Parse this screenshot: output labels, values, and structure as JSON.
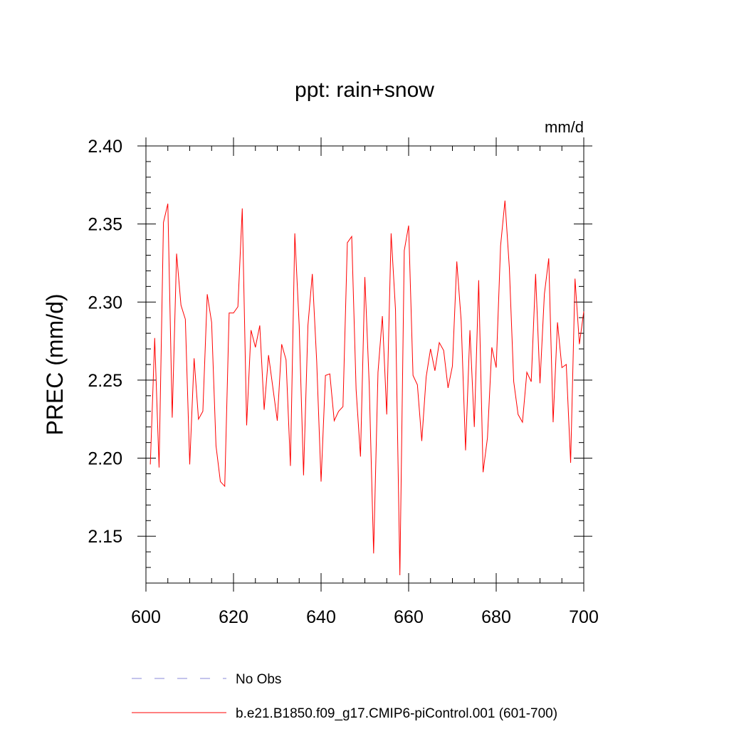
{
  "chart_data": {
    "type": "line",
    "title": "ppt: rain+snow",
    "units": "mm/d",
    "ylabel": "PREC  (mm/d)",
    "xlabel": "",
    "xlim": [
      600,
      700
    ],
    "ylim": [
      2.12,
      2.4
    ],
    "x_major_ticks": [
      600,
      620,
      640,
      660,
      680,
      700
    ],
    "x_minor_step": 5,
    "y_major_ticks": [
      2.15,
      2.2,
      2.25,
      2.3,
      2.35,
      2.4
    ],
    "y_tick_labels": [
      "2.15",
      "2.20",
      "2.25",
      "2.30",
      "2.35",
      "2.40"
    ],
    "y_minor_step": 0.01,
    "grid": false,
    "legend_position": "bottom",
    "series": [
      {
        "name": "No Obs",
        "color": "#8a8ad8",
        "style": "dashed",
        "x": [],
        "values": []
      },
      {
        "name": "b.e21.B1850.f09_g17.CMIP6-piControl.001 (601-700)",
        "color": "#ff0000",
        "style": "solid",
        "x": [
          601,
          602,
          603,
          604,
          605,
          606,
          607,
          608,
          609,
          610,
          611,
          612,
          613,
          614,
          615,
          616,
          617,
          618,
          619,
          620,
          621,
          622,
          623,
          624,
          625,
          626,
          627,
          628,
          629,
          630,
          631,
          632,
          633,
          634,
          635,
          636,
          637,
          638,
          639,
          640,
          641,
          642,
          643,
          644,
          645,
          646,
          647,
          648,
          649,
          650,
          651,
          652,
          653,
          654,
          655,
          656,
          657,
          658,
          659,
          660,
          661,
          662,
          663,
          664,
          665,
          666,
          667,
          668,
          669,
          670,
          671,
          672,
          673,
          674,
          675,
          676,
          677,
          678,
          679,
          680,
          681,
          682,
          683,
          684,
          685,
          686,
          687,
          688,
          689,
          690,
          691,
          692,
          693,
          694,
          695,
          696,
          697,
          698,
          699,
          700
        ],
        "values": [
          2.196,
          2.277,
          2.194,
          2.351,
          2.363,
          2.226,
          2.331,
          2.298,
          2.289,
          2.196,
          2.264,
          2.225,
          2.23,
          2.305,
          2.287,
          2.208,
          2.185,
          2.182,
          2.293,
          2.293,
          2.297,
          2.36,
          2.221,
          2.282,
          2.271,
          2.285,
          2.231,
          2.266,
          2.245,
          2.224,
          2.273,
          2.263,
          2.195,
          2.344,
          2.285,
          2.189,
          2.285,
          2.318,
          2.262,
          2.185,
          2.253,
          2.254,
          2.224,
          2.23,
          2.233,
          2.338,
          2.342,
          2.244,
          2.201,
          2.316,
          2.247,
          2.139,
          2.255,
          2.291,
          2.228,
          2.344,
          2.295,
          2.125,
          2.333,
          2.349,
          2.253,
          2.247,
          2.211,
          2.252,
          2.27,
          2.256,
          2.274,
          2.269,
          2.245,
          2.259,
          2.326,
          2.288,
          2.205,
          2.282,
          2.22,
          2.314,
          2.191,
          2.213,
          2.271,
          2.258,
          2.336,
          2.365,
          2.322,
          2.249,
          2.228,
          2.223,
          2.255,
          2.249,
          2.318,
          2.248,
          2.305,
          2.328,
          2.223,
          2.287,
          2.258,
          2.26,
          2.197,
          2.315,
          2.273,
          2.294
        ]
      }
    ]
  }
}
